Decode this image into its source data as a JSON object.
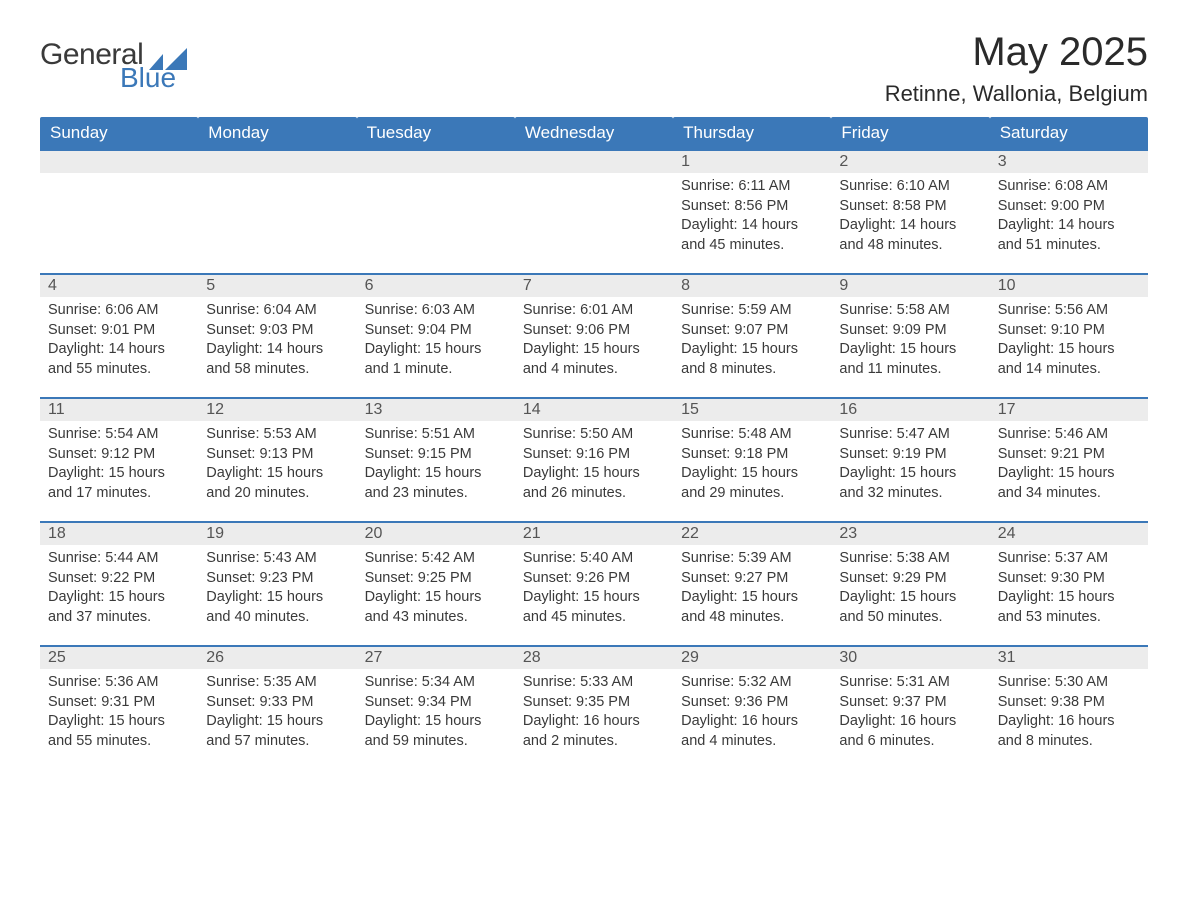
{
  "logo": {
    "word1": "General",
    "word2": "Blue",
    "gray_color": "#3a3a3a",
    "blue_color": "#3b78b8"
  },
  "title": "May 2025",
  "location": "Retinne, Wallonia, Belgium",
  "colors": {
    "header_bg": "#3b78b8",
    "header_text": "#ffffff",
    "daybar_bg": "#ececec",
    "daybar_border": "#3b78b8",
    "body_text": "#3a3a3a",
    "page_bg": "#ffffff"
  },
  "fonts": {
    "title_size": 40,
    "location_size": 22,
    "header_size": 17,
    "daynum_size": 16,
    "body_size": 14.5
  },
  "day_headers": [
    "Sunday",
    "Monday",
    "Tuesday",
    "Wednesday",
    "Thursday",
    "Friday",
    "Saturday"
  ],
  "weeks": [
    [
      null,
      null,
      null,
      null,
      {
        "n": "1",
        "sunrise": "Sunrise: 6:11 AM",
        "sunset": "Sunset: 8:56 PM",
        "dl1": "Daylight: 14 hours",
        "dl2": "and 45 minutes."
      },
      {
        "n": "2",
        "sunrise": "Sunrise: 6:10 AM",
        "sunset": "Sunset: 8:58 PM",
        "dl1": "Daylight: 14 hours",
        "dl2": "and 48 minutes."
      },
      {
        "n": "3",
        "sunrise": "Sunrise: 6:08 AM",
        "sunset": "Sunset: 9:00 PM",
        "dl1": "Daylight: 14 hours",
        "dl2": "and 51 minutes."
      }
    ],
    [
      {
        "n": "4",
        "sunrise": "Sunrise: 6:06 AM",
        "sunset": "Sunset: 9:01 PM",
        "dl1": "Daylight: 14 hours",
        "dl2": "and 55 minutes."
      },
      {
        "n": "5",
        "sunrise": "Sunrise: 6:04 AM",
        "sunset": "Sunset: 9:03 PM",
        "dl1": "Daylight: 14 hours",
        "dl2": "and 58 minutes."
      },
      {
        "n": "6",
        "sunrise": "Sunrise: 6:03 AM",
        "sunset": "Sunset: 9:04 PM",
        "dl1": "Daylight: 15 hours",
        "dl2": "and 1 minute."
      },
      {
        "n": "7",
        "sunrise": "Sunrise: 6:01 AM",
        "sunset": "Sunset: 9:06 PM",
        "dl1": "Daylight: 15 hours",
        "dl2": "and 4 minutes."
      },
      {
        "n": "8",
        "sunrise": "Sunrise: 5:59 AM",
        "sunset": "Sunset: 9:07 PM",
        "dl1": "Daylight: 15 hours",
        "dl2": "and 8 minutes."
      },
      {
        "n": "9",
        "sunrise": "Sunrise: 5:58 AM",
        "sunset": "Sunset: 9:09 PM",
        "dl1": "Daylight: 15 hours",
        "dl2": "and 11 minutes."
      },
      {
        "n": "10",
        "sunrise": "Sunrise: 5:56 AM",
        "sunset": "Sunset: 9:10 PM",
        "dl1": "Daylight: 15 hours",
        "dl2": "and 14 minutes."
      }
    ],
    [
      {
        "n": "11",
        "sunrise": "Sunrise: 5:54 AM",
        "sunset": "Sunset: 9:12 PM",
        "dl1": "Daylight: 15 hours",
        "dl2": "and 17 minutes."
      },
      {
        "n": "12",
        "sunrise": "Sunrise: 5:53 AM",
        "sunset": "Sunset: 9:13 PM",
        "dl1": "Daylight: 15 hours",
        "dl2": "and 20 minutes."
      },
      {
        "n": "13",
        "sunrise": "Sunrise: 5:51 AM",
        "sunset": "Sunset: 9:15 PM",
        "dl1": "Daylight: 15 hours",
        "dl2": "and 23 minutes."
      },
      {
        "n": "14",
        "sunrise": "Sunrise: 5:50 AM",
        "sunset": "Sunset: 9:16 PM",
        "dl1": "Daylight: 15 hours",
        "dl2": "and 26 minutes."
      },
      {
        "n": "15",
        "sunrise": "Sunrise: 5:48 AM",
        "sunset": "Sunset: 9:18 PM",
        "dl1": "Daylight: 15 hours",
        "dl2": "and 29 minutes."
      },
      {
        "n": "16",
        "sunrise": "Sunrise: 5:47 AM",
        "sunset": "Sunset: 9:19 PM",
        "dl1": "Daylight: 15 hours",
        "dl2": "and 32 minutes."
      },
      {
        "n": "17",
        "sunrise": "Sunrise: 5:46 AM",
        "sunset": "Sunset: 9:21 PM",
        "dl1": "Daylight: 15 hours",
        "dl2": "and 34 minutes."
      }
    ],
    [
      {
        "n": "18",
        "sunrise": "Sunrise: 5:44 AM",
        "sunset": "Sunset: 9:22 PM",
        "dl1": "Daylight: 15 hours",
        "dl2": "and 37 minutes."
      },
      {
        "n": "19",
        "sunrise": "Sunrise: 5:43 AM",
        "sunset": "Sunset: 9:23 PM",
        "dl1": "Daylight: 15 hours",
        "dl2": "and 40 minutes."
      },
      {
        "n": "20",
        "sunrise": "Sunrise: 5:42 AM",
        "sunset": "Sunset: 9:25 PM",
        "dl1": "Daylight: 15 hours",
        "dl2": "and 43 minutes."
      },
      {
        "n": "21",
        "sunrise": "Sunrise: 5:40 AM",
        "sunset": "Sunset: 9:26 PM",
        "dl1": "Daylight: 15 hours",
        "dl2": "and 45 minutes."
      },
      {
        "n": "22",
        "sunrise": "Sunrise: 5:39 AM",
        "sunset": "Sunset: 9:27 PM",
        "dl1": "Daylight: 15 hours",
        "dl2": "and 48 minutes."
      },
      {
        "n": "23",
        "sunrise": "Sunrise: 5:38 AM",
        "sunset": "Sunset: 9:29 PM",
        "dl1": "Daylight: 15 hours",
        "dl2": "and 50 minutes."
      },
      {
        "n": "24",
        "sunrise": "Sunrise: 5:37 AM",
        "sunset": "Sunset: 9:30 PM",
        "dl1": "Daylight: 15 hours",
        "dl2": "and 53 minutes."
      }
    ],
    [
      {
        "n": "25",
        "sunrise": "Sunrise: 5:36 AM",
        "sunset": "Sunset: 9:31 PM",
        "dl1": "Daylight: 15 hours",
        "dl2": "and 55 minutes."
      },
      {
        "n": "26",
        "sunrise": "Sunrise: 5:35 AM",
        "sunset": "Sunset: 9:33 PM",
        "dl1": "Daylight: 15 hours",
        "dl2": "and 57 minutes."
      },
      {
        "n": "27",
        "sunrise": "Sunrise: 5:34 AM",
        "sunset": "Sunset: 9:34 PM",
        "dl1": "Daylight: 15 hours",
        "dl2": "and 59 minutes."
      },
      {
        "n": "28",
        "sunrise": "Sunrise: 5:33 AM",
        "sunset": "Sunset: 9:35 PM",
        "dl1": "Daylight: 16 hours",
        "dl2": "and 2 minutes."
      },
      {
        "n": "29",
        "sunrise": "Sunrise: 5:32 AM",
        "sunset": "Sunset: 9:36 PM",
        "dl1": "Daylight: 16 hours",
        "dl2": "and 4 minutes."
      },
      {
        "n": "30",
        "sunrise": "Sunrise: 5:31 AM",
        "sunset": "Sunset: 9:37 PM",
        "dl1": "Daylight: 16 hours",
        "dl2": "and 6 minutes."
      },
      {
        "n": "31",
        "sunrise": "Sunrise: 5:30 AM",
        "sunset": "Sunset: 9:38 PM",
        "dl1": "Daylight: 16 hours",
        "dl2": "and 8 minutes."
      }
    ]
  ]
}
